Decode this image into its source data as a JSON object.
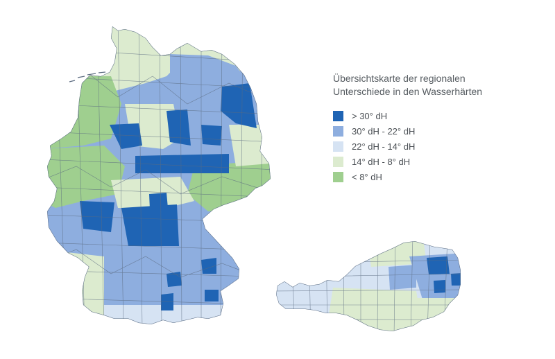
{
  "legend": {
    "title_line1": "Übersichtskarte der regionalen",
    "title_line2": "Unterschiede in den Wasserhärten",
    "items": [
      {
        "label": "> 30° dH",
        "color": "#1f64b4"
      },
      {
        "label": "30° dH - 22° dH",
        "color": "#8eaedf"
      },
      {
        "label": "22° dH - 14° dH",
        "color": "#d6e3f3"
      },
      {
        "label": "14° dH - 8° dH",
        "color": "#dcebcf"
      },
      {
        "label": "< 8° dH",
        "color": "#9fcf8f"
      }
    ]
  },
  "map": {
    "countries": [
      "germany",
      "austria"
    ],
    "border_color": "#5b6b80"
  }
}
